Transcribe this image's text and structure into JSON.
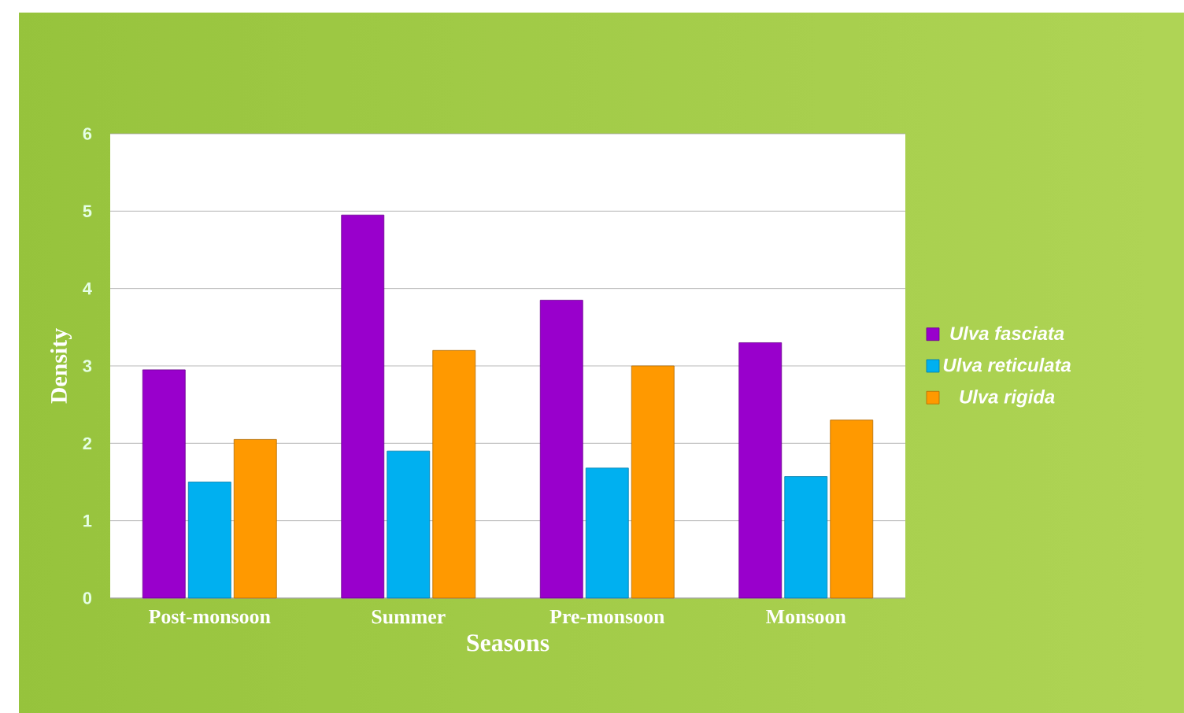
{
  "chart_data": {
    "type": "bar",
    "xlabel": "Seasons",
    "ylabel": "Density",
    "categories": [
      "Post-monsoon",
      "Summer",
      "Pre-monsoon",
      "Monsoon"
    ],
    "series": [
      {
        "name": "*Ulva fasciata*",
        "color": "#9900cc",
        "values": [
          2.95,
          4.95,
          3.85,
          3.3
        ]
      },
      {
        "name": "*Ulva reticulata*",
        "color": "#00b0f0",
        "values": [
          1.5,
          1.9,
          1.68,
          1.57
        ]
      },
      {
        "name": "*Ulva rigida*",
        "color": "#ff9900",
        "values": [
          2.05,
          3.2,
          3.0,
          2.3
        ]
      }
    ],
    "ylim": [
      0,
      6
    ],
    "yticks": [
      0,
      1,
      2,
      3,
      4,
      5,
      6
    ],
    "grid": "y",
    "legend": "right"
  }
}
